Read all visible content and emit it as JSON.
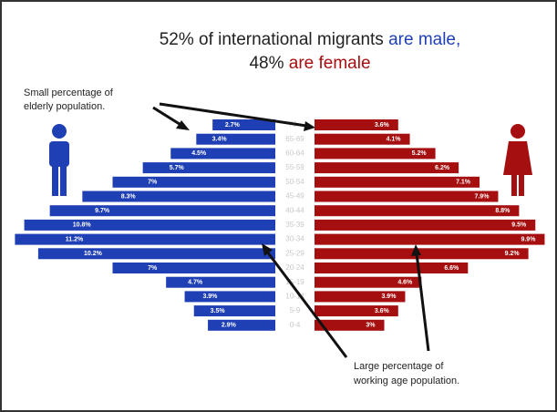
{
  "chart_data": {
    "type": "pyramid",
    "title": {
      "line1": {
        "text": "52% of international migrants ",
        "highlight": "are male,"
      },
      "line2": {
        "text": "48% ",
        "highlight": "are female"
      }
    },
    "categories": [
      "70+",
      "65-69",
      "60-64",
      "55-59",
      "50-54",
      "45-49",
      "40-44",
      "35-39",
      "30-34",
      "25-29",
      "20-24",
      "15-19",
      "10-14",
      "5-9",
      "0-4"
    ],
    "series": [
      {
        "color": "#1f3fb5",
        "values": [
          2.7,
          3.4,
          4.5,
          5.7,
          7,
          8.3,
          9.7,
          10.8,
          11.2,
          10.2,
          7,
          4.7,
          3.9,
          3.5,
          2.9
        ],
        "value_labels": [
          "2.7%",
          "3.4%",
          "4.5%",
          "5.7%",
          "7%",
          "8.3%",
          "9.7%",
          "10.8%",
          "11.2%",
          "10.2%",
          "7%",
          "4.7%",
          "3.9%",
          "3.5%",
          "2.9%"
        ]
      },
      {
        "color": "#a50f0f",
        "values": [
          3.6,
          4.1,
          5.2,
          6.2,
          7.1,
          7.9,
          8.8,
          9.5,
          9.9,
          9.2,
          6.6,
          4.6,
          3.9,
          3.6,
          3
        ],
        "value_labels": [
          "3.6%",
          "4.1%",
          "5.2%",
          "6.2%",
          "7.1%",
          "7.9%",
          "8.8%",
          "9.5%",
          "9.9%",
          "9.2%",
          "6.6%",
          "4.6%",
          "3.9%",
          "3.6%",
          "3%"
        ]
      }
    ],
    "annotations": [
      {
        "lines": [
          "Small percentage of",
          "elderly population."
        ]
      },
      {
        "lines": [
          "Large percentage of",
          "working age population."
        ]
      }
    ]
  }
}
